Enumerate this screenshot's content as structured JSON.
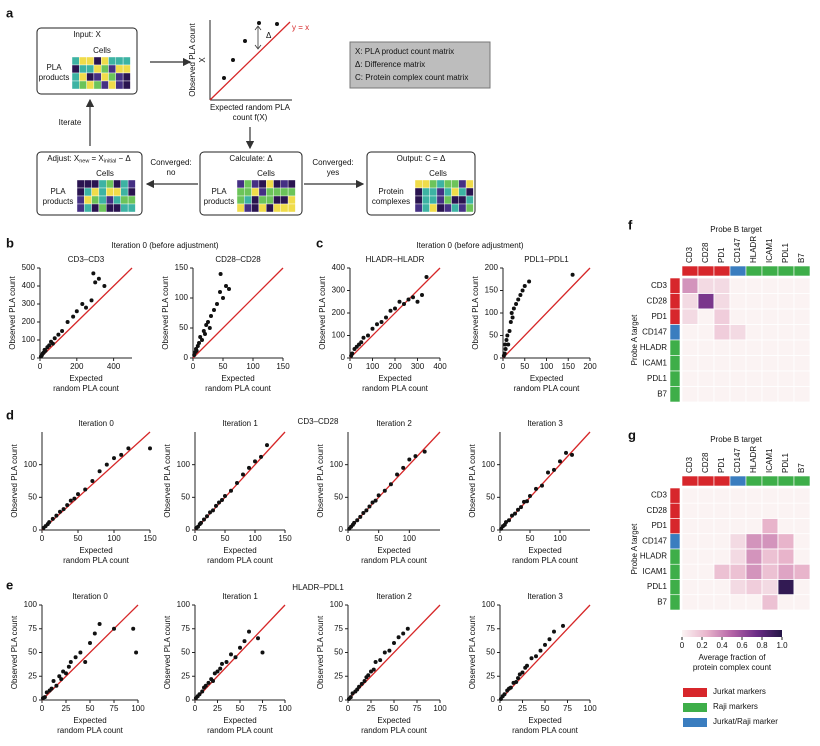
{
  "panel_labels": [
    "a",
    "b",
    "c",
    "d",
    "e",
    "f",
    "g"
  ],
  "group_titles": [
    "Iteration 0 (before adjustment)",
    "Iteration 0 (before adjustment)",
    "CD3–CD28",
    "HLADR–PDL1"
  ],
  "diagram": {
    "input": {
      "title": "Input: X",
      "cells": "Cells",
      "rows": [
        "PLA",
        "products"
      ]
    },
    "plot": {
      "ylabel": [
        "Observed PLA count",
        "X"
      ],
      "xlabel": [
        "Expected random PLA",
        "count f(X)"
      ],
      "delta": "Δ",
      "identity": "y = x"
    },
    "key": [
      "X: PLA product count matrix",
      "Δ: Difference matrix",
      "C: Protein complex count matrix"
    ],
    "iterate": "Iterate",
    "adjust": {
      "title_parts": [
        "Adjust: X",
        "new",
        " = X",
        "initial",
        " − Δ"
      ],
      "cells": "Cells",
      "rows": [
        "PLA",
        "products"
      ]
    },
    "calculate": {
      "title": "Calculate: Δ",
      "cells": "Cells",
      "rows": [
        "PLA",
        "products"
      ]
    },
    "no": [
      "Converged:",
      "no"
    ],
    "yes": [
      "Converged:",
      "yes"
    ],
    "output": {
      "title": "Output: C = Δ",
      "cells": "Cells",
      "rows": [
        "Protein",
        "complexes"
      ]
    }
  },
  "chart_data": [
    {
      "type": "scatter",
      "title": "CD3–CD3",
      "ylabel": "Observed PLA count",
      "xlabel": [
        "Expected",
        "random PLA count"
      ],
      "color": "#111111",
      "identity_color": "#d62728",
      "x": [
        5,
        10,
        15,
        20,
        25,
        30,
        40,
        50,
        60,
        70,
        80,
        100,
        120,
        150,
        180,
        200,
        230,
        250,
        280,
        290,
        300,
        320,
        350
      ],
      "values": [
        8,
        15,
        25,
        30,
        45,
        40,
        60,
        70,
        90,
        80,
        110,
        130,
        150,
        200,
        230,
        260,
        300,
        280,
        320,
        470,
        420,
        440,
        400
      ],
      "xlim": [
        0,
        500
      ],
      "ylim": [
        0,
        500
      ],
      "xticks": [
        0,
        200,
        400
      ],
      "yticks": [
        0,
        100,
        200,
        300,
        400,
        500
      ]
    },
    {
      "type": "scatter",
      "title": "CD28–CD28",
      "ylabel": "Observed PLA count",
      "xlabel": [
        "Expected",
        "random PLA count"
      ],
      "color": "#111111",
      "identity_color": "#d62728",
      "x": [
        2,
        4,
        5,
        6,
        8,
        10,
        12,
        15,
        18,
        20,
        22,
        25,
        28,
        30,
        35,
        40,
        45,
        46,
        50,
        55,
        60
      ],
      "values": [
        5,
        10,
        15,
        12,
        20,
        25,
        35,
        30,
        45,
        40,
        55,
        60,
        50,
        70,
        80,
        90,
        110,
        140,
        100,
        120,
        115
      ],
      "xlim": [
        0,
        150
      ],
      "ylim": [
        0,
        150
      ],
      "xticks": [
        0,
        50,
        100,
        150
      ],
      "yticks": [
        0,
        50,
        100,
        150
      ]
    },
    {
      "type": "scatter",
      "title": "HLADR–HLADR",
      "ylabel": "Observed PLA count",
      "xlabel": [
        "Expected",
        "random PLA count"
      ],
      "color": "#111111",
      "identity_color": "#d62728",
      "x": [
        5,
        10,
        20,
        30,
        40,
        50,
        60,
        80,
        100,
        120,
        140,
        160,
        180,
        200,
        220,
        240,
        260,
        280,
        300,
        320,
        340
      ],
      "values": [
        10,
        20,
        40,
        50,
        60,
        70,
        90,
        100,
        130,
        150,
        160,
        180,
        210,
        220,
        250,
        240,
        260,
        270,
        250,
        280,
        360
      ],
      "xlim": [
        0,
        400
      ],
      "ylim": [
        0,
        400
      ],
      "xticks": [
        0,
        100,
        200,
        300,
        400
      ],
      "yticks": [
        0,
        100,
        200,
        300,
        400
      ]
    },
    {
      "type": "scatter",
      "title": "PDL1–PDL1",
      "ylabel": "Observed PLA count",
      "xlabel": [
        "Expected",
        "random PLA count"
      ],
      "color": "#111111",
      "identity_color": "#d62728",
      "x": [
        2,
        4,
        5,
        6,
        8,
        10,
        12,
        15,
        18,
        20,
        22,
        25,
        30,
        35,
        40,
        45,
        50,
        60,
        160
      ],
      "values": [
        5,
        10,
        30,
        20,
        40,
        50,
        30,
        60,
        80,
        100,
        90,
        110,
        120,
        130,
        140,
        150,
        160,
        170,
        185
      ],
      "xlim": [
        0,
        200
      ],
      "ylim": [
        0,
        200
      ],
      "xticks": [
        0,
        50,
        100,
        150,
        200
      ],
      "yticks": [
        0,
        50,
        100,
        150,
        200
      ]
    },
    {
      "type": "scatter",
      "title": "Iteration 0",
      "ylabel": "Observed PLA count",
      "xlabel": [
        "Expected",
        "random PLA count"
      ],
      "color": "#111111",
      "identity_color": "#d62728",
      "x": [
        2,
        5,
        8,
        10,
        15,
        20,
        25,
        30,
        35,
        40,
        45,
        50,
        60,
        70,
        80,
        90,
        100,
        110,
        120,
        150
      ],
      "values": [
        3,
        6,
        9,
        12,
        17,
        22,
        28,
        32,
        38,
        45,
        48,
        55,
        62,
        75,
        90,
        100,
        110,
        115,
        125,
        125
      ],
      "xlim": [
        0,
        150
      ],
      "ylim": [
        0,
        150
      ],
      "xticks": [
        0,
        50,
        100,
        150
      ],
      "yticks": [
        0,
        50,
        100
      ]
    },
    {
      "type": "scatter",
      "title": "Iteration 1",
      "ylabel": "Observed PLA count",
      "xlabel": [
        "Expected",
        "random PLA count"
      ],
      "color": "#111111",
      "identity_color": "#d62728",
      "x": [
        2,
        5,
        8,
        10,
        15,
        20,
        25,
        30,
        35,
        40,
        45,
        50,
        60,
        70,
        80,
        90,
        100,
        110,
        120
      ],
      "values": [
        3,
        5,
        9,
        11,
        16,
        21,
        27,
        30,
        37,
        42,
        46,
        52,
        60,
        72,
        85,
        95,
        105,
        112,
        130
      ],
      "xlim": [
        0,
        150
      ],
      "ylim": [
        0,
        150
      ],
      "xticks": [
        0,
        50,
        100,
        150
      ],
      "yticks": [
        0,
        50,
        100
      ]
    },
    {
      "type": "scatter",
      "title": "Iteration 2",
      "ylabel": "Observed PLA count",
      "xlabel": [
        "Expected",
        "random PLA count"
      ],
      "color": "#111111",
      "identity_color": "#d62728",
      "x": [
        2,
        5,
        8,
        10,
        15,
        20,
        25,
        30,
        35,
        40,
        45,
        50,
        60,
        70,
        80,
        90,
        100,
        110,
        125
      ],
      "values": [
        2,
        5,
        8,
        11,
        15,
        20,
        26,
        30,
        36,
        42,
        45,
        53,
        60,
        70,
        85,
        95,
        108,
        113,
        120
      ],
      "xlim": [
        0,
        150
      ],
      "ylim": [
        0,
        150
      ],
      "xticks": [
        0,
        50,
        100
      ],
      "yticks": [
        0,
        50,
        100
      ]
    },
    {
      "type": "scatter",
      "title": "Iteration 3",
      "ylabel": "Observed PLA count",
      "xlabel": [
        "Expected",
        "random PLA count"
      ],
      "color": "#111111",
      "identity_color": "#d62728",
      "x": [
        2,
        5,
        8,
        10,
        15,
        20,
        25,
        30,
        35,
        40,
        45,
        50,
        60,
        70,
        80,
        90,
        100,
        110,
        120
      ],
      "values": [
        2,
        6,
        8,
        12,
        15,
        22,
        25,
        31,
        35,
        43,
        44,
        52,
        63,
        68,
        88,
        92,
        105,
        118,
        115
      ],
      "xlim": [
        0,
        150
      ],
      "ylim": [
        0,
        150
      ],
      "xticks": [
        0,
        50,
        100
      ],
      "yticks": [
        0,
        50,
        100
      ]
    },
    {
      "type": "scatter",
      "title": "Iteration 0",
      "ylabel": "Observed PLA count",
      "xlabel": [
        "Expected",
        "random PLA count"
      ],
      "color": "#111111",
      "identity_color": "#d62728",
      "x": [
        1,
        3,
        5,
        8,
        10,
        12,
        15,
        18,
        20,
        22,
        25,
        28,
        30,
        35,
        40,
        45,
        50,
        55,
        60,
        75,
        95,
        98
      ],
      "values": [
        2,
        3,
        8,
        10,
        12,
        20,
        15,
        25,
        22,
        30,
        28,
        35,
        40,
        45,
        50,
        40,
        60,
        70,
        80,
        75,
        75,
        50
      ],
      "xlim": [
        0,
        100
      ],
      "ylim": [
        0,
        100
      ],
      "xticks": [
        0,
        25,
        50,
        75,
        100
      ],
      "yticks": [
        0,
        25,
        50,
        75,
        100
      ]
    },
    {
      "type": "scatter",
      "title": "Iteration 1",
      "ylabel": "Observed PLA count",
      "xlabel": [
        "Expected",
        "random PLA count"
      ],
      "color": "#111111",
      "identity_color": "#d62728",
      "x": [
        1,
        3,
        5,
        8,
        10,
        12,
        15,
        18,
        20,
        22,
        25,
        28,
        30,
        35,
        40,
        45,
        50,
        55,
        60,
        70,
        75
      ],
      "values": [
        2,
        4,
        6,
        9,
        13,
        15,
        18,
        22,
        20,
        28,
        30,
        33,
        38,
        40,
        48,
        45,
        55,
        62,
        72,
        65,
        50
      ],
      "xlim": [
        0,
        100
      ],
      "ylim": [
        0,
        100
      ],
      "xticks": [
        0,
        25,
        50,
        75,
        100
      ],
      "yticks": [
        0,
        25,
        50,
        75,
        100
      ]
    },
    {
      "type": "scatter",
      "title": "Iteration 2",
      "ylabel": "Observed PLA count",
      "xlabel": [
        "Expected",
        "random PLA count"
      ],
      "color": "#111111",
      "identity_color": "#d62728",
      "x": [
        1,
        3,
        5,
        8,
        10,
        12,
        15,
        18,
        20,
        22,
        25,
        28,
        30,
        35,
        40,
        45,
        50,
        55,
        60,
        65
      ],
      "values": [
        1,
        3,
        7,
        9,
        11,
        14,
        17,
        20,
        24,
        26,
        30,
        32,
        40,
        42,
        50,
        52,
        60,
        66,
        70,
        75
      ],
      "xlim": [
        0,
        100
      ],
      "ylim": [
        0,
        100
      ],
      "xticks": [
        0,
        25,
        50,
        75,
        100
      ],
      "yticks": [
        0,
        25,
        50,
        75,
        100
      ]
    },
    {
      "type": "scatter",
      "title": "Iteration 3",
      "ylabel": "Observed PLA count",
      "xlabel": [
        "Expected",
        "random PLA count"
      ],
      "color": "#111111",
      "identity_color": "#d62728",
      "x": [
        1,
        3,
        5,
        8,
        10,
        12,
        15,
        18,
        20,
        22,
        25,
        28,
        30,
        35,
        40,
        45,
        50,
        55,
        60,
        70
      ],
      "values": [
        1,
        4,
        6,
        10,
        12,
        13,
        18,
        19,
        23,
        27,
        29,
        34,
        36,
        44,
        46,
        52,
        58,
        64,
        72,
        78
      ],
      "xlim": [
        0,
        100
      ],
      "ylim": [
        0,
        100
      ],
      "xticks": [
        0,
        25,
        50,
        75,
        100
      ],
      "yticks": [
        0,
        25,
        50,
        75,
        100
      ]
    },
    {
      "type": "heatmap",
      "title": "Probe B target",
      "ylabel": "Probe A target",
      "columns": [
        "CD3",
        "CD28",
        "PD1",
        "CD147",
        "HLADR",
        "ICAM1",
        "PDL1",
        "B7"
      ],
      "rows": [
        "CD3",
        "CD28",
        "PD1",
        "CD147",
        "HLADR",
        "ICAM1",
        "PDL1",
        "B7"
      ],
      "group_colors": [
        "#d7262b",
        "#d7262b",
        "#d7262b",
        "#3a7dbf",
        "#3eae49",
        "#3eae49",
        "#3eae49",
        "#3eae49"
      ],
      "zlim": [
        0,
        1
      ],
      "colormap": [
        "#fbf3f3",
        "#e8b4cb",
        "#b463a6",
        "#6b2c86",
        "#241646"
      ],
      "values": [
        [
          0.35,
          0.1,
          0.1,
          0,
          0,
          0,
          0,
          0
        ],
        [
          0.1,
          0.7,
          0.1,
          0,
          0,
          0,
          0,
          0
        ],
        [
          0.1,
          0,
          0.15,
          0,
          0,
          0,
          0,
          0
        ],
        [
          0,
          0,
          0.15,
          0.1,
          0,
          0,
          0,
          0
        ],
        [
          0,
          0,
          0,
          0,
          0,
          0,
          0,
          0
        ],
        [
          0,
          0,
          0,
          0,
          0,
          0,
          0,
          0
        ],
        [
          0,
          0,
          0,
          0,
          0,
          0,
          0,
          0
        ],
        [
          0,
          0,
          0,
          0,
          0,
          0,
          0,
          0
        ]
      ]
    },
    {
      "type": "heatmap",
      "title": "Probe B target",
      "ylabel": "Probe A target",
      "columns": [
        "CD3",
        "CD28",
        "PD1",
        "CD147",
        "HLADR",
        "ICAM1",
        "PDL1",
        "B7"
      ],
      "rows": [
        "CD3",
        "CD28",
        "PD1",
        "CD147",
        "HLADR",
        "ICAM1",
        "PDL1",
        "B7"
      ],
      "group_colors": [
        "#d7262b",
        "#d7262b",
        "#d7262b",
        "#3a7dbf",
        "#3eae49",
        "#3eae49",
        "#3eae49",
        "#3eae49"
      ],
      "zlim": [
        0,
        1
      ],
      "colormap": [
        "#fbf3f3",
        "#e8b4cb",
        "#b463a6",
        "#6b2c86",
        "#241646"
      ],
      "values": [
        [
          0,
          0,
          0,
          0,
          0,
          0,
          0,
          0
        ],
        [
          0,
          0,
          0,
          0,
          0,
          0,
          0,
          0
        ],
        [
          0,
          0,
          0,
          0,
          0,
          0.25,
          0,
          0
        ],
        [
          0,
          0,
          0,
          0.1,
          0.35,
          0.35,
          0.25,
          0
        ],
        [
          0,
          0,
          0,
          0.1,
          0.35,
          0.2,
          0.25,
          0
        ],
        [
          0,
          0,
          0.2,
          0.2,
          0.35,
          0.2,
          0.3,
          0.25
        ],
        [
          0,
          0,
          0,
          0.1,
          0.15,
          0.1,
          0.95,
          0
        ],
        [
          0,
          0,
          0,
          0,
          0,
          0.2,
          0,
          0
        ]
      ],
      "colorbar": {
        "ticks": [
          0,
          0.2,
          0.4,
          0.6,
          0.8,
          {
            "value": 1,
            "label": "1.0"
          }
        ],
        "label": [
          "Average fraction of",
          "protein complex count"
        ]
      }
    }
  ],
  "legend": [
    {
      "name": "Jurkat markers",
      "color": "#d7262b"
    },
    {
      "name": "Raji markers",
      "color": "#3eae49"
    },
    {
      "name": "Jurkat/Raji marker",
      "color": "#3a7dbf"
    }
  ]
}
